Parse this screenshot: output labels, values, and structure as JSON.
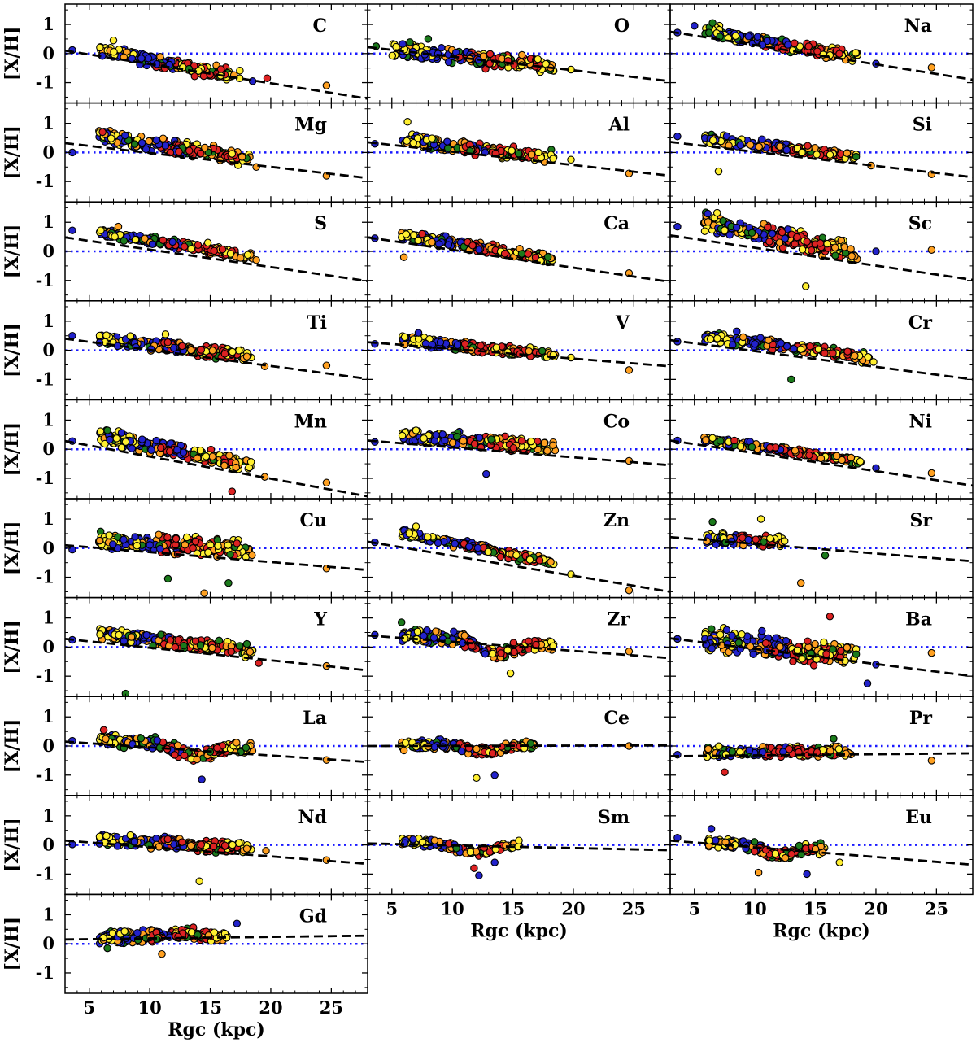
{
  "chart_data": {
    "type": "scatter",
    "xlabel": "Rgc (kpc)",
    "ylabel": "[X/H]",
    "xlim": [
      3,
      28
    ],
    "ylim": [
      -1.7,
      1.7
    ],
    "xticks": [
      5,
      10,
      15,
      20,
      25
    ],
    "yticks": [
      -1,
      0,
      1
    ],
    "reference_line_y": 0,
    "colors": {
      "c0": "#2222cc",
      "c1": "#1b7a1b",
      "c2": "#ffa020",
      "c3": "#dd2222",
      "c4": "#ffef30"
    },
    "panels": [
      {
        "element": "C",
        "fit": {
          "x": [
            3,
            28
          ],
          "y": [
            0.1,
            -1.55
          ]
        },
        "xlo": 5.8,
        "xhi": 17.6,
        "base": 0.1,
        "slope": -0.076,
        "hump": 0.0,
        "scat": 0.19,
        "n": 200,
        "outliers": [
          [
            3.6,
            0.12
          ],
          [
            24.6,
            -1.1
          ],
          [
            18.5,
            -0.95
          ],
          [
            19.7,
            -0.85
          ],
          [
            7.0,
            0.45
          ]
        ]
      },
      {
        "element": "O",
        "fit": {
          "x": [
            3,
            28
          ],
          "y": [
            0.22,
            -0.95
          ]
        },
        "xlo": 5.0,
        "xhi": 18.6,
        "base": 0.1,
        "slope": -0.04,
        "hump": 0.0,
        "scat": 0.24,
        "n": 240,
        "outliers": [
          [
            3.7,
            0.25
          ],
          [
            19.8,
            -0.55
          ],
          [
            8.0,
            0.5
          ]
        ]
      },
      {
        "element": "Na",
        "fit": {
          "x": [
            3,
            28
          ],
          "y": [
            0.75,
            -0.9
          ]
        },
        "xlo": 5.8,
        "xhi": 18.5,
        "base": 0.8,
        "slope": -0.075,
        "hump": 0.0,
        "scat": 0.2,
        "n": 220,
        "outliers": [
          [
            3.6,
            0.72
          ],
          [
            24.6,
            -0.48
          ],
          [
            20.0,
            -0.35
          ],
          [
            5.0,
            0.95
          ],
          [
            6.5,
            1.05
          ]
        ]
      },
      {
        "element": "Mg",
        "fit": {
          "x": [
            3,
            28
          ],
          "y": [
            0.32,
            -0.88
          ]
        },
        "xlo": 5.8,
        "xhi": 18.5,
        "base": 0.55,
        "slope": -0.06,
        "hump": 0.0,
        "scat": 0.23,
        "n": 240,
        "outliers": [
          [
            3.6,
            0.0
          ],
          [
            24.6,
            -0.8
          ],
          [
            6.1,
            0.7
          ],
          [
            18.8,
            -0.5
          ]
        ]
      },
      {
        "element": "Al",
        "fit": {
          "x": [
            3,
            28
          ],
          "y": [
            0.35,
            -0.8
          ]
        },
        "xlo": 5.8,
        "xhi": 18.5,
        "base": 0.45,
        "slope": -0.05,
        "hump": 0.0,
        "scat": 0.18,
        "n": 220,
        "outliers": [
          [
            3.6,
            0.3
          ],
          [
            24.6,
            -0.72
          ],
          [
            6.3,
            1.05
          ],
          [
            19.8,
            -0.25
          ]
        ]
      },
      {
        "element": "Si",
        "fit": {
          "x": [
            3,
            28
          ],
          "y": [
            0.36,
            -0.85
          ]
        },
        "xlo": 5.8,
        "xhi": 18.5,
        "base": 0.48,
        "slope": -0.05,
        "hump": 0.0,
        "scat": 0.15,
        "n": 220,
        "outliers": [
          [
            3.6,
            0.55
          ],
          [
            24.6,
            -0.75
          ],
          [
            7.0,
            -0.65
          ],
          [
            19.6,
            -0.45
          ]
        ]
      },
      {
        "element": "S",
        "fit": {
          "x": [
            3,
            28
          ],
          "y": [
            0.48,
            -1.02
          ]
        },
        "xlo": 5.8,
        "xhi": 18.5,
        "base": 0.65,
        "slope": -0.065,
        "hump": 0.0,
        "scat": 0.14,
        "n": 220,
        "outliers": [
          [
            3.6,
            0.72
          ],
          [
            7.4,
            0.85
          ],
          [
            14.8,
            0.3
          ],
          [
            18.8,
            -0.3
          ]
        ]
      },
      {
        "element": "Ca",
        "fit": {
          "x": [
            3,
            28
          ],
          "y": [
            0.48,
            -1.05
          ]
        },
        "xlo": 5.8,
        "xhi": 18.5,
        "base": 0.55,
        "slope": -0.065,
        "hump": 0.0,
        "scat": 0.17,
        "n": 230,
        "outliers": [
          [
            3.6,
            0.45
          ],
          [
            24.6,
            -0.75
          ],
          [
            7.5,
            0.6
          ],
          [
            6.0,
            -0.2
          ]
        ]
      },
      {
        "element": "Sc",
        "fit": {
          "x": [
            3,
            28
          ],
          "y": [
            0.55,
            -0.98
          ]
        },
        "xlo": 5.8,
        "xhi": 18.5,
        "base": 1.05,
        "slope": -0.09,
        "hump": 0.0,
        "scat": 0.33,
        "n": 240,
        "outliers": [
          [
            3.6,
            0.85
          ],
          [
            24.6,
            0.05
          ],
          [
            20.0,
            0.0
          ],
          [
            14.2,
            -1.2
          ]
        ]
      },
      {
        "element": "Ti",
        "fit": {
          "x": [
            3,
            28
          ],
          "y": [
            0.4,
            -0.98
          ]
        },
        "xlo": 5.8,
        "xhi": 18.5,
        "base": 0.42,
        "slope": -0.05,
        "hump": 0.0,
        "scat": 0.19,
        "n": 230,
        "outliers": [
          [
            3.6,
            0.5
          ],
          [
            24.6,
            -0.52
          ],
          [
            19.5,
            -0.55
          ],
          [
            11.3,
            0.55
          ]
        ]
      },
      {
        "element": "V",
        "fit": {
          "x": [
            3,
            28
          ],
          "y": [
            0.28,
            -0.55
          ]
        },
        "xlo": 5.8,
        "xhi": 18.5,
        "base": 0.35,
        "slope": -0.04,
        "hump": 0.0,
        "scat": 0.17,
        "n": 230,
        "outliers": [
          [
            3.6,
            0.22
          ],
          [
            24.6,
            -0.68
          ],
          [
            19.8,
            -0.25
          ],
          [
            7.2,
            0.6
          ]
        ]
      },
      {
        "element": "Cr",
        "fit": {
          "x": [
            3,
            28
          ],
          "y": [
            0.35,
            -1.0
          ]
        },
        "xlo": 5.8,
        "xhi": 19.5,
        "base": 0.5,
        "slope": -0.055,
        "hump": 0.0,
        "scat": 0.17,
        "n": 230,
        "outliers": [
          [
            3.6,
            0.3
          ],
          [
            8.5,
            0.65
          ],
          [
            13.0,
            -1.0
          ],
          [
            19.8,
            -0.4
          ]
        ]
      },
      {
        "element": "Mn",
        "fit": {
          "x": [
            3,
            28
          ],
          "y": [
            0.28,
            -1.62
          ]
        },
        "xlo": 5.8,
        "xhi": 18.5,
        "base": 0.45,
        "slope": -0.08,
        "hump": 0.0,
        "scat": 0.23,
        "n": 230,
        "outliers": [
          [
            3.6,
            0.28
          ],
          [
            24.6,
            -1.15
          ],
          [
            6.5,
            0.65
          ],
          [
            16.8,
            -1.45
          ],
          [
            19.5,
            -0.95
          ]
        ]
      },
      {
        "element": "Co",
        "fit": {
          "x": [
            3,
            28
          ],
          "y": [
            0.3,
            -0.55
          ]
        },
        "xlo": 5.8,
        "xhi": 18.5,
        "base": 0.45,
        "slope": -0.03,
        "hump": 0.0,
        "scat": 0.21,
        "n": 230,
        "outliers": [
          [
            3.6,
            0.25
          ],
          [
            24.6,
            -0.4
          ],
          [
            12.8,
            -0.85
          ],
          [
            7.0,
            0.65
          ]
        ]
      },
      {
        "element": "Ni",
        "fit": {
          "x": [
            3,
            28
          ],
          "y": [
            0.3,
            -1.25
          ]
        },
        "xlo": 5.8,
        "xhi": 19.0,
        "base": 0.35,
        "slope": -0.06,
        "hump": 0.0,
        "scat": 0.11,
        "n": 220,
        "outliers": [
          [
            3.6,
            0.3
          ],
          [
            24.6,
            -0.82
          ],
          [
            20.0,
            -0.65
          ],
          [
            8.3,
            0.3
          ]
        ]
      },
      {
        "element": "Cu",
        "fit": {
          "x": [
            3,
            28
          ],
          "y": [
            0.1,
            -0.75
          ]
        },
        "xlo": 5.8,
        "xhi": 18.5,
        "base": 0.3,
        "slope": -0.03,
        "hump": 0.0,
        "scat": 0.3,
        "n": 240,
        "outliers": [
          [
            3.6,
            -0.05
          ],
          [
            24.6,
            -0.7
          ],
          [
            11.5,
            -1.05
          ],
          [
            14.5,
            -1.55
          ],
          [
            16.5,
            -1.2
          ]
        ]
      },
      {
        "element": "Zn",
        "fit": {
          "x": [
            3,
            28
          ],
          "y": [
            0.22,
            -1.5
          ]
        },
        "xlo": 5.8,
        "xhi": 18.5,
        "base": 0.55,
        "slope": -0.085,
        "hump": 0.0,
        "scat": 0.14,
        "n": 230,
        "outliers": [
          [
            3.6,
            0.2
          ],
          [
            24.6,
            -1.45
          ],
          [
            7.0,
            0.75
          ],
          [
            19.8,
            -0.9
          ]
        ]
      },
      {
        "element": "Sr",
        "fit": {
          "x": [
            3,
            28
          ],
          "y": [
            0.38,
            -0.45
          ]
        },
        "xlo": 6.0,
        "xhi": 12.5,
        "base": 0.35,
        "slope": -0.02,
        "hump": 0.0,
        "scat": 0.2,
        "n": 95,
        "outliers": [
          [
            15.8,
            -0.25
          ],
          [
            13.8,
            -1.2
          ],
          [
            10.5,
            1.0
          ],
          [
            6.5,
            0.9
          ]
        ]
      },
      {
        "element": "Y",
        "fit": {
          "x": [
            3,
            28
          ],
          "y": [
            0.28,
            -0.8
          ]
        },
        "xlo": 5.8,
        "xhi": 18.5,
        "base": 0.45,
        "slope": -0.045,
        "hump": 0.0,
        "scat": 0.21,
        "n": 240,
        "outliers": [
          [
            3.6,
            0.25
          ],
          [
            24.6,
            -0.65
          ],
          [
            8.0,
            -1.6
          ],
          [
            19.0,
            -0.55
          ]
        ]
      },
      {
        "element": "Zr",
        "fit": {
          "x": [
            3,
            28
          ],
          "y": [
            0.4,
            -0.38
          ]
        },
        "xlo": 5.8,
        "xhi": 18.5,
        "base": 0.45,
        "slope": -0.03,
        "hump": -0.45,
        "scat": 0.21,
        "n": 240,
        "outliers": [
          [
            3.6,
            0.42
          ],
          [
            24.6,
            -0.15
          ],
          [
            5.8,
            0.85
          ],
          [
            14.8,
            -0.9
          ]
        ]
      },
      {
        "element": "Ba",
        "fit": {
          "x": [
            3,
            28
          ],
          "y": [
            0.3,
            -1.0
          ]
        },
        "xlo": 5.8,
        "xhi": 18.5,
        "base": 0.25,
        "slope": -0.04,
        "hump": -0.15,
        "scat": 0.36,
        "n": 260,
        "outliers": [
          [
            3.6,
            0.28
          ],
          [
            24.6,
            -0.2
          ],
          [
            20.0,
            -0.6
          ],
          [
            19.3,
            -1.25
          ],
          [
            16.2,
            1.05
          ]
        ]
      },
      {
        "element": "La",
        "fit": {
          "x": [
            3,
            28
          ],
          "y": [
            0.15,
            -0.55
          ]
        },
        "xlo": 5.8,
        "xhi": 18.5,
        "base": 0.2,
        "slope": -0.02,
        "hump": -0.4,
        "scat": 0.2,
        "n": 240,
        "outliers": [
          [
            3.6,
            0.18
          ],
          [
            24.6,
            -0.48
          ],
          [
            14.3,
            -1.15
          ],
          [
            6.2,
            0.55
          ]
        ]
      },
      {
        "element": "Ce",
        "fit": {
          "x": [
            3,
            28
          ],
          "y": [
            0.0,
            0.02
          ]
        },
        "xlo": 5.8,
        "xhi": 17.0,
        "base": 0.05,
        "slope": 0.0,
        "hump": -0.25,
        "scat": 0.15,
        "n": 200,
        "outliers": [
          [
            24.6,
            0.0
          ],
          [
            12.0,
            -1.1
          ],
          [
            13.5,
            -1.0
          ],
          [
            6.0,
            -0.15
          ]
        ]
      },
      {
        "element": "Pr",
        "fit": {
          "x": [
            3,
            28
          ],
          "y": [
            -0.35,
            -0.25
          ]
        },
        "xlo": 6.0,
        "xhi": 18.0,
        "base": -0.2,
        "slope": 0.0,
        "hump": 0.0,
        "scat": 0.17,
        "n": 220,
        "outliers": [
          [
            3.6,
            -0.3
          ],
          [
            24.6,
            -0.5
          ],
          [
            7.5,
            -0.9
          ],
          [
            16.5,
            0.25
          ]
        ]
      },
      {
        "element": "Nd",
        "fit": {
          "x": [
            3,
            28
          ],
          "y": [
            0.15,
            -0.65
          ]
        },
        "xlo": 5.8,
        "xhi": 18.5,
        "base": 0.2,
        "slope": -0.025,
        "hump": 0.0,
        "scat": 0.19,
        "n": 240,
        "outliers": [
          [
            3.6,
            0.02
          ],
          [
            24.6,
            -0.52
          ],
          [
            14.1,
            -1.25
          ],
          [
            19.6,
            -0.2
          ]
        ]
      },
      {
        "element": "Sm",
        "fit": {
          "x": [
            3,
            28
          ],
          "y": [
            0.05,
            -0.18
          ]
        },
        "xlo": 5.8,
        "xhi": 15.5,
        "base": 0.1,
        "slope": -0.01,
        "hump": -0.3,
        "scat": 0.14,
        "n": 160,
        "outliers": [
          [
            12.2,
            -1.05
          ],
          [
            11.8,
            -0.8
          ],
          [
            15.5,
            0.15
          ],
          [
            13.5,
            -0.6
          ]
        ]
      },
      {
        "element": "Eu",
        "fit": {
          "x": [
            3,
            28
          ],
          "y": [
            0.15,
            -0.68
          ]
        },
        "xlo": 6.0,
        "xhi": 15.8,
        "base": 0.1,
        "slope": -0.02,
        "hump": -0.3,
        "scat": 0.18,
        "n": 160,
        "outliers": [
          [
            3.6,
            0.25
          ],
          [
            6.4,
            0.55
          ],
          [
            10.3,
            -0.95
          ],
          [
            17.0,
            -0.6
          ],
          [
            14.3,
            -1.0
          ]
        ]
      },
      {
        "element": "Gd",
        "fit": {
          "x": [
            3,
            28
          ],
          "y": [
            0.15,
            0.28
          ]
        },
        "xlo": 5.8,
        "xhi": 16.5,
        "base": 0.25,
        "slope": 0.0,
        "hump": 0.1,
        "scat": 0.2,
        "n": 220,
        "outliers": [
          [
            17.2,
            0.7
          ],
          [
            6.5,
            -0.15
          ],
          [
            11.0,
            -0.35
          ]
        ]
      }
    ]
  }
}
